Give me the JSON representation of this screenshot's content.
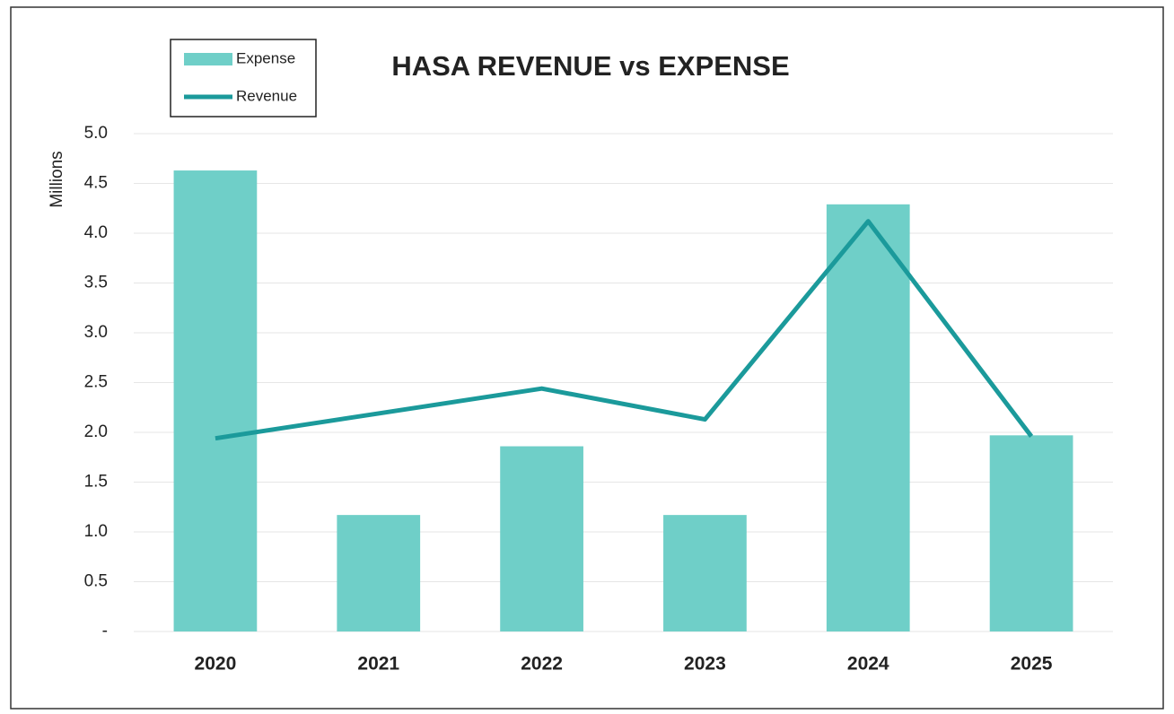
{
  "chart_data": {
    "type": "combo",
    "title": "HASA REVENUE vs EXPENSE",
    "y_label": "Millions",
    "categories": [
      "2020",
      "2021",
      "2022",
      "2023",
      "2024",
      "2025"
    ],
    "series": [
      {
        "name": "Expense",
        "type": "bar",
        "color": "#6fcfc8",
        "values": [
          4.63,
          1.17,
          1.86,
          1.17,
          4.29,
          1.97
        ]
      },
      {
        "name": "Revenue",
        "type": "line",
        "color": "#1b9a9b",
        "values": [
          1.94,
          2.19,
          2.44,
          2.13,
          4.12,
          1.96
        ]
      }
    ],
    "ylim": [
      0,
      5
    ],
    "yticks": [
      {
        "value": 0,
        "label": "-"
      },
      0.5,
      {
        "value": 1,
        "label": "1.0"
      },
      1.5,
      {
        "value": 2,
        "label": "2.0"
      },
      2.5,
      {
        "value": 3,
        "label": "3.0"
      },
      3.5,
      {
        "value": 4,
        "label": "4.0"
      },
      4.5,
      {
        "value": 5,
        "label": "5.0"
      }
    ],
    "grid": true,
    "legend": "top-left"
  }
}
